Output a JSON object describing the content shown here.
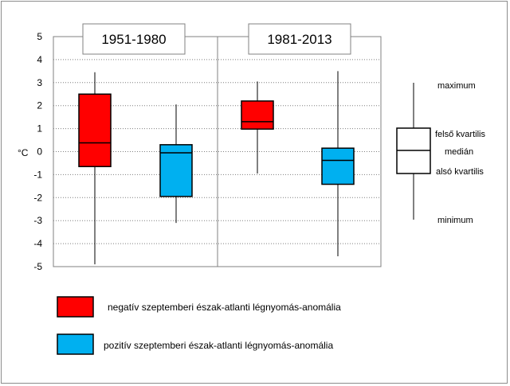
{
  "chart_data": {
    "type": "box",
    "ylabel": "°C",
    "ylim": [
      -5,
      5
    ],
    "yticks": [
      5,
      4,
      3,
      2,
      1,
      0,
      -1,
      -2,
      -3,
      -4,
      -5
    ],
    "grid": "horizontal dotted",
    "panels": [
      {
        "title": "1951-1980",
        "boxes": [
          {
            "series": "negative",
            "min": -4.9,
            "q1": -0.65,
            "median": 0.38,
            "q3": 2.5,
            "max": 3.45
          },
          {
            "series": "positive",
            "min": -3.1,
            "q1": -1.95,
            "median": -0.05,
            "q3": 0.3,
            "max": 2.05
          }
        ]
      },
      {
        "title": "1981-2013",
        "boxes": [
          {
            "series": "negative",
            "min": -0.95,
            "q1": 0.98,
            "median": 1.3,
            "q3": 2.2,
            "max": 3.05
          },
          {
            "series": "positive",
            "min": -4.55,
            "q1": -1.42,
            "median": -0.38,
            "q3": 0.15,
            "max": 3.5
          }
        ]
      }
    ],
    "series": [
      {
        "key": "negative",
        "name": "negatív szeptemberi észak-atlanti légnyomás-anomália",
        "color": "#ff0000"
      },
      {
        "key": "positive",
        "name": "pozitív szeptemberi észak-atlanti légnyomás-anomália",
        "color": "#00b0f0"
      }
    ],
    "key_labels": {
      "maximum": "maximum",
      "upper_quartile": "felső kvartilis",
      "median": "medián",
      "lower_quartile": "alsó kvartilis",
      "minimum": "minimum"
    }
  }
}
